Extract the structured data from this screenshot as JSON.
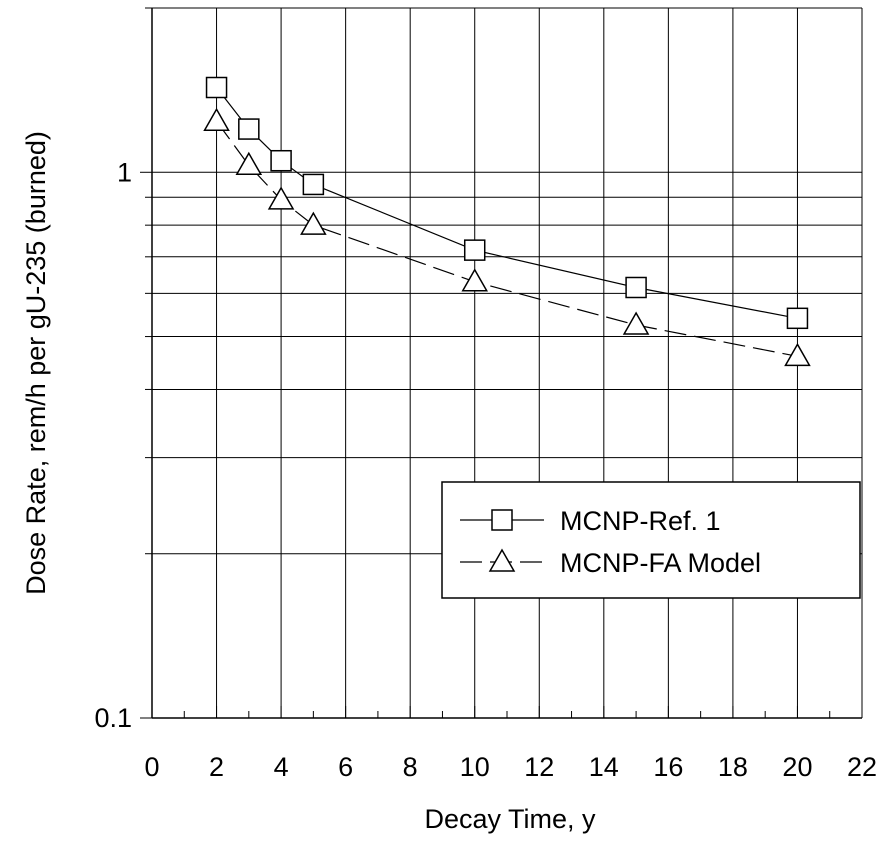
{
  "chart_data": {
    "type": "line",
    "xlabel": "Decay Time, y",
    "ylabel": "Dose Rate, rem/h per gU-235 (burned)",
    "xlim": [
      0,
      22
    ],
    "ylim": [
      0.1,
      2.0
    ],
    "yscale": "log",
    "grid": true,
    "x_ticks": [
      "0",
      "2",
      "4",
      "6",
      "8",
      "10",
      "12",
      "14",
      "16",
      "18",
      "20",
      "22"
    ],
    "y_ticks": [
      "0.1",
      "1"
    ],
    "legend_position": "lower-right",
    "series": [
      {
        "name": "MCNP-Ref. 1",
        "marker": "square",
        "line": "solid",
        "x": [
          2,
          3,
          4,
          5,
          10,
          15,
          20
        ],
        "y": [
          1.43,
          1.2,
          1.05,
          0.95,
          0.72,
          0.615,
          0.54
        ]
      },
      {
        "name": "MCNP-FA Model",
        "marker": "triangle",
        "line": "dashed",
        "x": [
          2,
          3,
          4,
          5,
          10,
          15,
          20
        ],
        "y": [
          1.24,
          1.03,
          0.89,
          0.8,
          0.63,
          0.525,
          0.46
        ]
      }
    ]
  }
}
